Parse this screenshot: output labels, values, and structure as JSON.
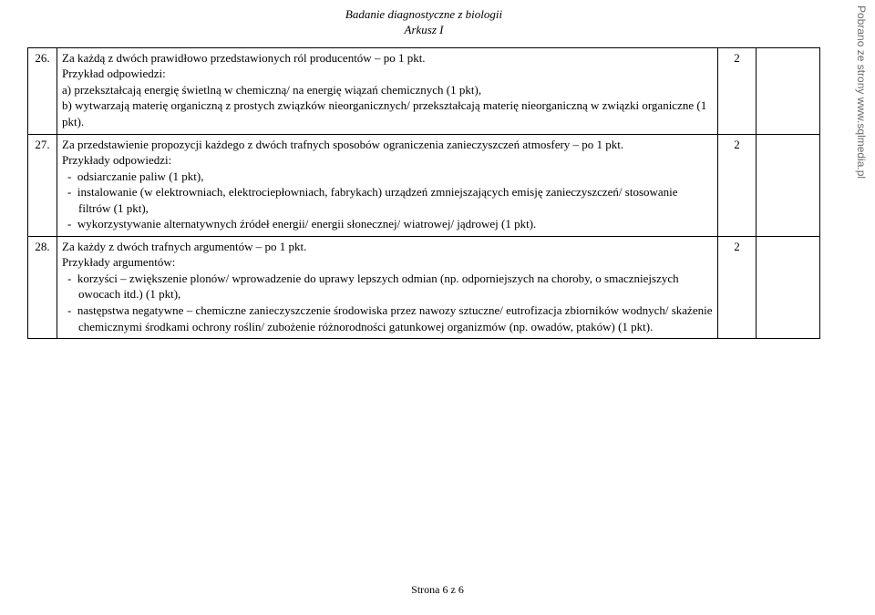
{
  "header": {
    "title_line1": "Badanie diagnostyczne z biologii",
    "title_line2": "Arkusz I"
  },
  "rows": [
    {
      "num": "26.",
      "points": "2",
      "main": "Za każdą z dwóch prawidłowo przedstawionych ról producentów – po 1 pkt.",
      "sub": "Przykład odpowiedzi:",
      "body": "a) przekształcają energię świetlną w chemiczną/ na energię wiązań chemicznych (1 pkt),\nb) wytwarzają materię organiczną z prostych związków nieorganicznych/ przekształcają materię nieorganiczną w związki organiczne (1 pkt)."
    },
    {
      "num": "27.",
      "points": "2",
      "main": "Za przedstawienie propozycji każdego z dwóch trafnych sposobów ograniczenia zanieczyszczeń atmosfery – po 1 pkt.",
      "sub": "Przykłady odpowiedzi:",
      "items": [
        "odsiarczanie paliw (1 pkt),",
        "instalowanie (w elektrowniach, elektrociepłowniach, fabrykach) urządzeń zmniejszających emisję zanieczyszczeń/ stosowanie filtrów (1 pkt),",
        "wykorzystywanie alternatywnych źródeł energii/ energii słonecznej/ wiatrowej/ jądrowej (1 pkt)."
      ]
    },
    {
      "num": "28.",
      "points": "2",
      "main": "Za każdy z dwóch trafnych argumentów – po 1 pkt.",
      "sub": "Przykłady argumentów:",
      "items": [
        "korzyści – zwiększenie plonów/ wprowadzenie do uprawy lepszych odmian (np. odporniejszych na choroby, o smaczniejszych owocach itd.) (1 pkt),",
        "następstwa negatywne – chemiczne zanieczyszczenie środowiska przez nawozy sztuczne/ eutrofizacja zbiorników wodnych/ skażenie chemicznymi środkami ochrony roślin/ zubożenie różnorodności gatunkowej organizmów (np. owadów, ptaków) (1 pkt)."
      ]
    }
  ],
  "footer": "Strona 6 z 6",
  "sidetext": "Pobrano ze strony www.sqlmedia.pl",
  "colors": {
    "text": "#000000",
    "background": "#ffffff",
    "side": "#6b6b6b"
  },
  "fonts": {
    "body_family": "Times New Roman",
    "body_size_pt": 10,
    "side_family": "Arial"
  }
}
